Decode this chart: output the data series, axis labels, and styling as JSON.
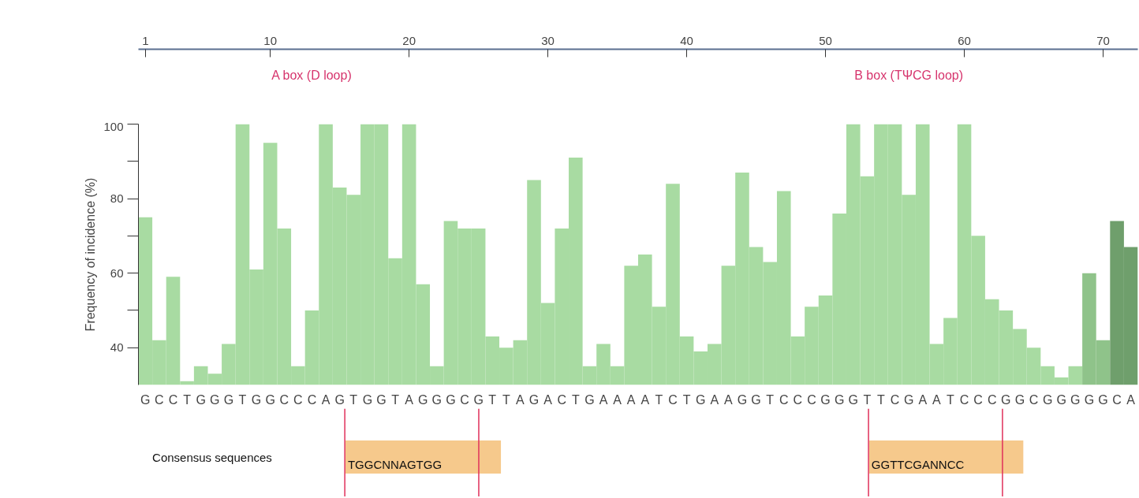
{
  "chart_data": {
    "type": "bar",
    "ylabel": "Frequency of incidence (%)",
    "categories": [
      "G",
      "C",
      "C",
      "T",
      "G",
      "G",
      "G",
      "T",
      "G",
      "G",
      "C",
      "C",
      "C",
      "A",
      "G",
      "T",
      "G",
      "G",
      "T",
      "A",
      "G",
      "G",
      "G",
      "C",
      "G",
      "T",
      "T",
      "A",
      "G",
      "A",
      "C",
      "T",
      "G",
      "A",
      "A",
      "A",
      "A",
      "T",
      "C",
      "T",
      "G",
      "A",
      "A",
      "G",
      "G",
      "T",
      "C",
      "C",
      "C",
      "G",
      "G",
      "G",
      "T",
      "T",
      "C",
      "G",
      "A",
      "A",
      "T",
      "C",
      "C",
      "C",
      "G",
      "G",
      "C",
      "G",
      "G",
      "G",
      "G",
      "G",
      "C",
      "A"
    ],
    "values": [
      75,
      42,
      59,
      31,
      35,
      33,
      41,
      100,
      61,
      95,
      72,
      35,
      50,
      100,
      83,
      81,
      100,
      100,
      64,
      100,
      57,
      35,
      74,
      72,
      72,
      43,
      40,
      42,
      85,
      52,
      72,
      91,
      35,
      41,
      35,
      62,
      65,
      51,
      84,
      43,
      39,
      41,
      62,
      87,
      67,
      63,
      82,
      43,
      51,
      54,
      76,
      100,
      86,
      100,
      100,
      81,
      100,
      41,
      48,
      100,
      70,
      53,
      50,
      45,
      40,
      35,
      32,
      35,
      60,
      42,
      74,
      67
    ],
    "colors": [
      "#a8dba2",
      "#a8dba2",
      "#a8dba2",
      "#a8dba2",
      "#a8dba2",
      "#a8dba2",
      "#a8dba2",
      "#a8dba2",
      "#a8dba2",
      "#a8dba2",
      "#a8dba2",
      "#a8dba2",
      "#a8dba2",
      "#a8dba2",
      "#a8dba2",
      "#a8dba2",
      "#a8dba2",
      "#a8dba2",
      "#a8dba2",
      "#a8dba2",
      "#a8dba2",
      "#a8dba2",
      "#a8dba2",
      "#a8dba2",
      "#a8dba2",
      "#a8dba2",
      "#a8dba2",
      "#a8dba2",
      "#a8dba2",
      "#a8dba2",
      "#a8dba2",
      "#a8dba2",
      "#a8dba2",
      "#a8dba2",
      "#a8dba2",
      "#a8dba2",
      "#a8dba2",
      "#a8dba2",
      "#a8dba2",
      "#a8dba2",
      "#a8dba2",
      "#a8dba2",
      "#a8dba2",
      "#a8dba2",
      "#a8dba2",
      "#a8dba2",
      "#a8dba2",
      "#a8dba2",
      "#a8dba2",
      "#a8dba2",
      "#a8dba2",
      "#a8dba2",
      "#a8dba2",
      "#a8dba2",
      "#a8dba2",
      "#a8dba2",
      "#a8dba2",
      "#a8dba2",
      "#a8dba2",
      "#a8dba2",
      "#a8dba2",
      "#a8dba2",
      "#a8dba2",
      "#a8dba2",
      "#a8dba2",
      "#a8dba2",
      "#a8dba2",
      "#a8dba2",
      "#8fc38a",
      "#8fc38a",
      "#6f9f6c",
      "#6f9f6c"
    ],
    "ylim": [
      30,
      100
    ],
    "yticks": [
      40,
      {
        "value": 50,
        "label": null
      },
      60,
      {
        "value": 70,
        "label": null
      },
      80,
      {
        "value": 90,
        "label": null
      },
      100
    ],
    "x2lim": [
      0.5,
      72.5
    ],
    "x2ticks": [
      1,
      10,
      20,
      30,
      40,
      50,
      60,
      70
    ],
    "annotations": [
      "A box (D loop)",
      "B box (TΨCG loop)",
      "Consensus sequences",
      "TGGCNNAGTGG",
      "GGTTCGANNCC"
    ],
    "grid": false
  }
}
